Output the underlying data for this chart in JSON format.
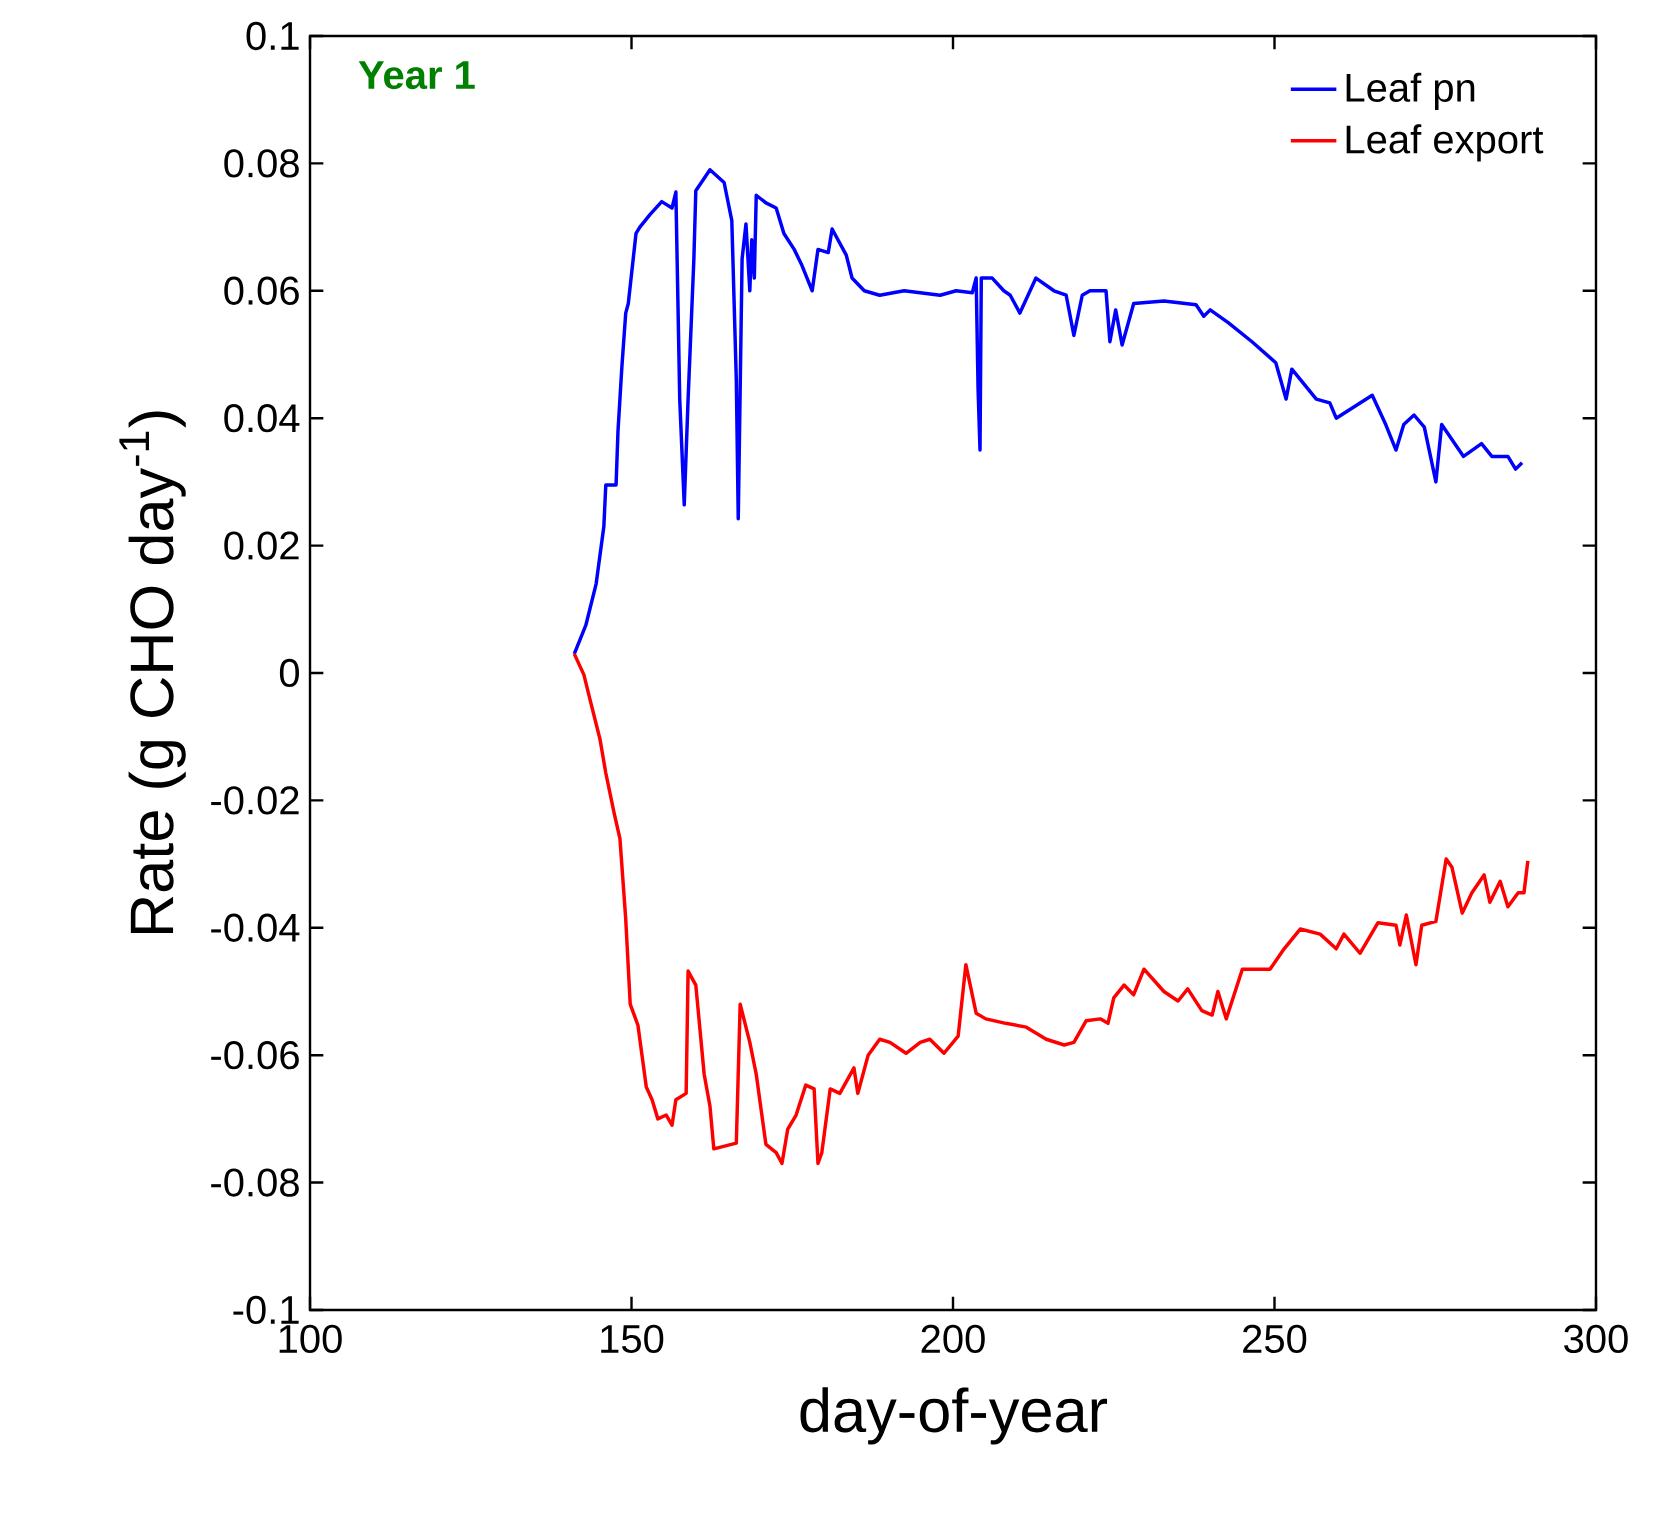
{
  "chart_data": {
    "type": "line",
    "title": "Year 1",
    "xlabel": "day-of-year",
    "ylabel": "Rate (g CHO day$^{-1}$)",
    "xlim": [
      100,
      300
    ],
    "ylim": [
      -0.1,
      0.1
    ],
    "xticks": [
      100,
      150,
      200,
      250,
      300
    ],
    "yticks": [
      -0.1,
      -0.08,
      -0.06,
      -0.04,
      -0.02,
      0,
      0.02,
      0.04,
      0.06,
      0.08,
      0.1
    ],
    "legend": "top right",
    "series": [
      {
        "name": "Leaf pn",
        "color": "#0000ff",
        "x": [
          141.1,
          142.9,
          144.5,
          145.7,
          146.0,
          147.6,
          147.9,
          148.5,
          149.1,
          149.5,
          150.7,
          151.3,
          152.9,
          154.7,
          156.3,
          156.9,
          157.5,
          158.2,
          158.8,
          159.7,
          160.0,
          162.2,
          164.4,
          165.6,
          166.3,
          166.6,
          167.2,
          167.8,
          168.4,
          168.7,
          169.1,
          169.4,
          170.9,
          172.5,
          173.7,
          175.3,
          176.5,
          178.1,
          179.0,
          180.6,
          181.2,
          183.4,
          184.3,
          186.2,
          188.6,
          192.4,
          198.0,
          200.5,
          203.0,
          203.6,
          203.9,
          204.2,
          204.4,
          206.1,
          207.9,
          208.9,
          210.4,
          212.9,
          215.7,
          217.6,
          218.8,
          220.1,
          221.3,
          222.9,
          223.8,
          224.4,
          225.3,
          226.3,
          228.1,
          232.8,
          237.8,
          239.0,
          240.0,
          242.8,
          246.5,
          250.2,
          251.8,
          252.7,
          256.5,
          258.6,
          259.6,
          265.2,
          267.3,
          268.9,
          270.1,
          271.7,
          273.3,
          275.1,
          276.0,
          279.4,
          282.2,
          283.8,
          286.3,
          287.5,
          288.5
        ],
        "values": [
          0.003,
          0.0075,
          0.014,
          0.023,
          0.0295,
          0.0295,
          0.038,
          0.048,
          0.0565,
          0.058,
          0.069,
          0.07,
          0.072,
          0.074,
          0.073,
          0.0755,
          0.043,
          0.0264,
          0.043,
          0.065,
          0.0757,
          0.079,
          0.077,
          0.071,
          0.046,
          0.0242,
          0.065,
          0.0705,
          0.06,
          0.068,
          0.062,
          0.075,
          0.0738,
          0.073,
          0.069,
          0.0665,
          0.064,
          0.06,
          0.0665,
          0.066,
          0.0697,
          0.0656,
          0.062,
          0.06,
          0.0593,
          0.06,
          0.0593,
          0.06,
          0.0597,
          0.062,
          0.0446,
          0.035,
          0.062,
          0.062,
          0.06,
          0.0593,
          0.0565,
          0.062,
          0.06,
          0.0593,
          0.053,
          0.0593,
          0.06,
          0.06,
          0.06,
          0.052,
          0.057,
          0.0515,
          0.058,
          0.0584,
          0.0578,
          0.056,
          0.057,
          0.055,
          0.052,
          0.0487,
          0.043,
          0.0477,
          0.043,
          0.0424,
          0.04,
          0.0436,
          0.039,
          0.035,
          0.039,
          0.0405,
          0.0386,
          0.03,
          0.039,
          0.034,
          0.036,
          0.034,
          0.034,
          0.032,
          0.033
        ]
      },
      {
        "name": "Leaf export",
        "color": "#ff0000",
        "x": [
          141.1,
          142.6,
          143.5,
          145.1,
          146.0,
          147.3,
          148.2,
          149.1,
          149.8,
          151.0,
          152.3,
          153.2,
          154.1,
          155.4,
          156.3,
          156.9,
          158.5,
          158.8,
          160.0,
          161.3,
          162.2,
          162.8,
          166.3,
          166.9,
          168.4,
          169.4,
          170.9,
          172.5,
          173.4,
          174.3,
          175.6,
          177.1,
          178.4,
          179.0,
          179.6,
          180.9,
          182.4,
          184.6,
          185.2,
          186.8,
          188.6,
          190.2,
          192.7,
          194.9,
          196.4,
          198.6,
          200.8,
          202.0,
          203.6,
          205.1,
          208.2,
          211.4,
          214.5,
          217.3,
          218.8,
          220.7,
          222.9,
          224.1,
          225.0,
          226.6,
          228.1,
          229.7,
          232.8,
          235.0,
          236.5,
          238.7,
          240.3,
          241.2,
          242.5,
          245.0,
          249.3,
          251.5,
          254.0,
          257.1,
          259.6,
          260.8,
          263.3,
          266.1,
          268.9,
          269.5,
          270.5,
          272.0,
          272.9,
          275.1,
          276.7,
          277.6,
          279.2,
          280.7,
          282.6,
          283.5,
          285.1,
          286.3,
          287.9,
          288.8,
          289.4
        ],
        "values": [
          0.003,
          -0.0003,
          -0.004,
          -0.0104,
          -0.0157,
          -0.022,
          -0.026,
          -0.0386,
          -0.052,
          -0.0553,
          -0.065,
          -0.067,
          -0.07,
          -0.0694,
          -0.071,
          -0.067,
          -0.066,
          -0.0468,
          -0.049,
          -0.063,
          -0.068,
          -0.0747,
          -0.0738,
          -0.052,
          -0.058,
          -0.063,
          -0.074,
          -0.0753,
          -0.077,
          -0.0716,
          -0.0694,
          -0.0647,
          -0.0653,
          -0.077,
          -0.0753,
          -0.0653,
          -0.066,
          -0.062,
          -0.066,
          -0.06,
          -0.0575,
          -0.058,
          -0.0597,
          -0.058,
          -0.0575,
          -0.0597,
          -0.057,
          -0.0458,
          -0.0534,
          -0.0543,
          -0.055,
          -0.0556,
          -0.0575,
          -0.0584,
          -0.058,
          -0.0546,
          -0.0543,
          -0.055,
          -0.051,
          -0.049,
          -0.0505,
          -0.0465,
          -0.05,
          -0.0515,
          -0.0496,
          -0.053,
          -0.0537,
          -0.05,
          -0.0543,
          -0.0465,
          -0.0465,
          -0.0433,
          -0.0402,
          -0.041,
          -0.0433,
          -0.041,
          -0.044,
          -0.0392,
          -0.0396,
          -0.0427,
          -0.038,
          -0.0458,
          -0.0396,
          -0.039,
          -0.0292,
          -0.0305,
          -0.0377,
          -0.0345,
          -0.0317,
          -0.036,
          -0.0327,
          -0.0367,
          -0.0345,
          -0.0345,
          -0.0295
        ]
      }
    ]
  }
}
